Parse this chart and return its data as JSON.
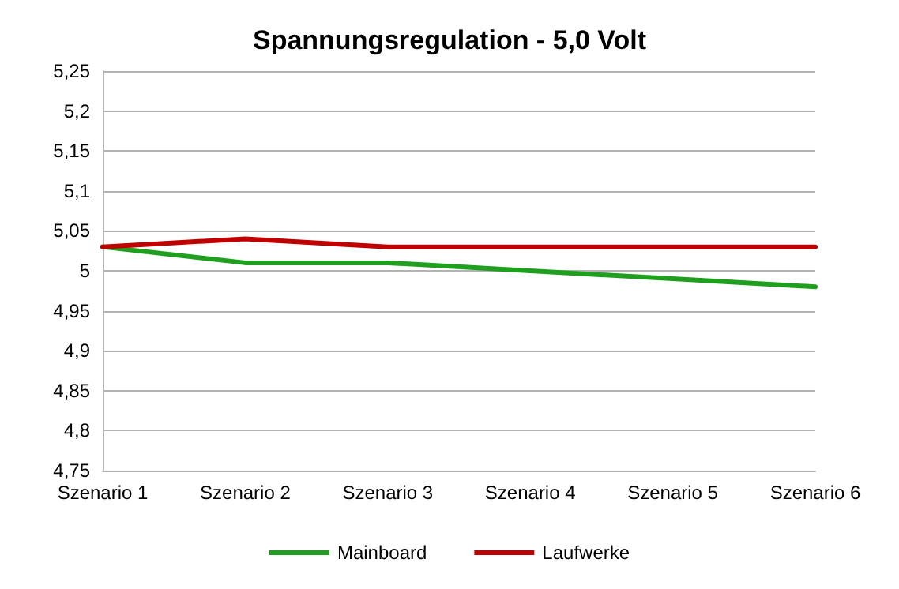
{
  "chart_data": {
    "type": "line",
    "title": "Spannungsregulation - 5,0 Volt",
    "categories": [
      "Szenario 1",
      "Szenario 2",
      "Szenario 3",
      "Szenario 4",
      "Szenario 5",
      "Szenario 6"
    ],
    "series": [
      {
        "name": "Mainboard",
        "color": "#1ea01e",
        "values": [
          5.03,
          5.01,
          5.01,
          5.0,
          4.99,
          4.98
        ]
      },
      {
        "name": "Laufwerke",
        "color": "#c00000",
        "values": [
          5.03,
          5.04,
          5.03,
          5.03,
          5.03,
          5.03
        ]
      }
    ],
    "ylim": [
      4.75,
      5.25
    ],
    "yticks": [
      {
        "value": 4.75,
        "label": "4,75"
      },
      {
        "value": 4.8,
        "label": "4,8"
      },
      {
        "value": 4.85,
        "label": "4,85"
      },
      {
        "value": 4.9,
        "label": "4,9"
      },
      {
        "value": 4.95,
        "label": "4,95"
      },
      {
        "value": 5,
        "label": "5"
      },
      {
        "value": 5.05,
        "label": "5,05"
      },
      {
        "value": 5.1,
        "label": "5,1"
      },
      {
        "value": 5.15,
        "label": "5,15"
      },
      {
        "value": 5.2,
        "label": "5,2"
      },
      {
        "value": 5.25,
        "label": "5,25"
      }
    ],
    "grid": "y",
    "legend": "bottom",
    "marker": "none",
    "line_style": "solid"
  }
}
